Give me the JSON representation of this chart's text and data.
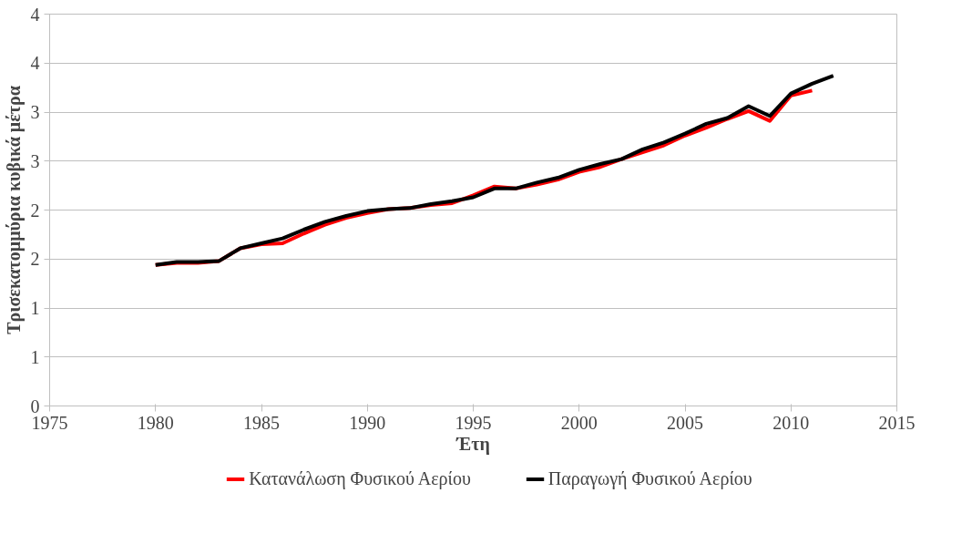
{
  "chart_data": {
    "type": "line",
    "xlabel": "Έτη",
    "ylabel": "Τρισεκατομμύρια κυβικά μέτρα",
    "x": [
      1980,
      1981,
      1982,
      1983,
      1984,
      1985,
      1986,
      1987,
      1988,
      1989,
      1990,
      1991,
      1992,
      1993,
      1994,
      1995,
      1996,
      1997,
      1998,
      1999,
      2000,
      2001,
      2002,
      2003,
      2004,
      2005,
      2006,
      2007,
      2008,
      2009,
      2010,
      2011,
      2012
    ],
    "series": [
      {
        "name": "Κατανάλωση Φυσικού Αερίου",
        "color": "#ff0000",
        "values": [
          1.44,
          1.46,
          1.46,
          1.48,
          1.61,
          1.65,
          1.66,
          1.76,
          1.85,
          1.92,
          1.97,
          2.01,
          2.02,
          2.05,
          2.07,
          2.15,
          2.24,
          2.22,
          2.26,
          2.31,
          2.39,
          2.44,
          2.52,
          2.59,
          2.66,
          2.76,
          2.84,
          2.93,
          3.01,
          2.91,
          3.17,
          3.22,
          null
        ]
      },
      {
        "name": "Παραγωγή Φυσικού Αερίου",
        "color": "#000000",
        "values": [
          1.44,
          1.47,
          1.47,
          1.48,
          1.61,
          1.66,
          1.71,
          1.8,
          1.88,
          1.94,
          1.99,
          2.01,
          2.02,
          2.06,
          2.09,
          2.13,
          2.22,
          2.22,
          2.28,
          2.33,
          2.41,
          2.47,
          2.52,
          2.62,
          2.69,
          2.78,
          2.88,
          2.94,
          3.06,
          2.96,
          3.19,
          3.29,
          3.37
        ]
      }
    ],
    "xlim": [
      1975,
      2015
    ],
    "xticks": [
      1975,
      1980,
      1985,
      1990,
      1995,
      2000,
      2005,
      2010,
      2015
    ],
    "ylim": [
      0,
      4
    ],
    "yticks": [
      0,
      {
        "value": 0.5,
        "label": "1"
      },
      1,
      {
        "value": 1.5,
        "label": "2"
      },
      2,
      {
        "value": 2.5,
        "label": "3"
      },
      3,
      {
        "value": 3.5,
        "label": "4"
      },
      4
    ],
    "grid": "y",
    "legend": "bottom",
    "marker": "none",
    "line_style": "solid"
  }
}
